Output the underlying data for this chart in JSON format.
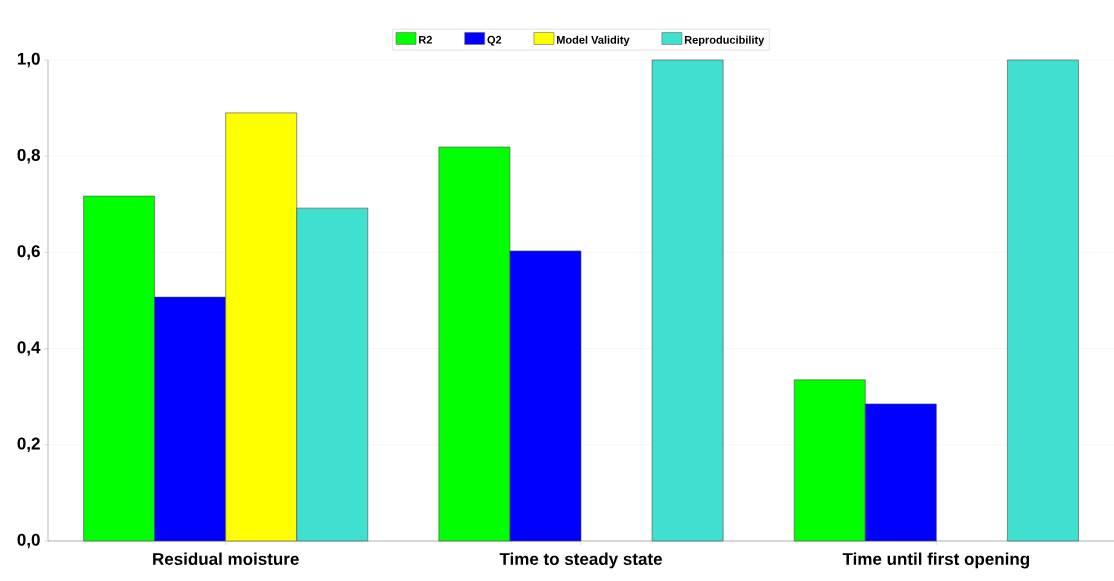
{
  "chart_data": {
    "type": "bar",
    "categories": [
      "Residual moisture",
      "Time to steady state",
      "Time until first opening"
    ],
    "series": [
      {
        "name": "R2",
        "color": "#00ff00",
        "values": [
          0.717,
          0.819,
          0.335
        ]
      },
      {
        "name": "Q2",
        "color": "#0000ff",
        "values": [
          0.507,
          0.603,
          0.285
        ]
      },
      {
        "name": "Model Validity",
        "color": "#ffff00",
        "values": [
          0.89,
          null,
          null
        ]
      },
      {
        "name": "Reproducibility",
        "color": "#40e0d0",
        "values": [
          0.692,
          1.0,
          1.0
        ]
      }
    ],
    "ylim": [
      0,
      1.0
    ],
    "yticks": [
      {
        "value": 0,
        "label": "0,0"
      },
      {
        "value": 0.2,
        "label": "0,2"
      },
      {
        "value": 0.4,
        "label": "0,4"
      },
      {
        "value": 0.6,
        "label": "0,6"
      },
      {
        "value": 0.8,
        "label": "0,8"
      },
      {
        "value": 1.0,
        "label": "1,0"
      }
    ],
    "grid": "y",
    "legend": "top"
  }
}
